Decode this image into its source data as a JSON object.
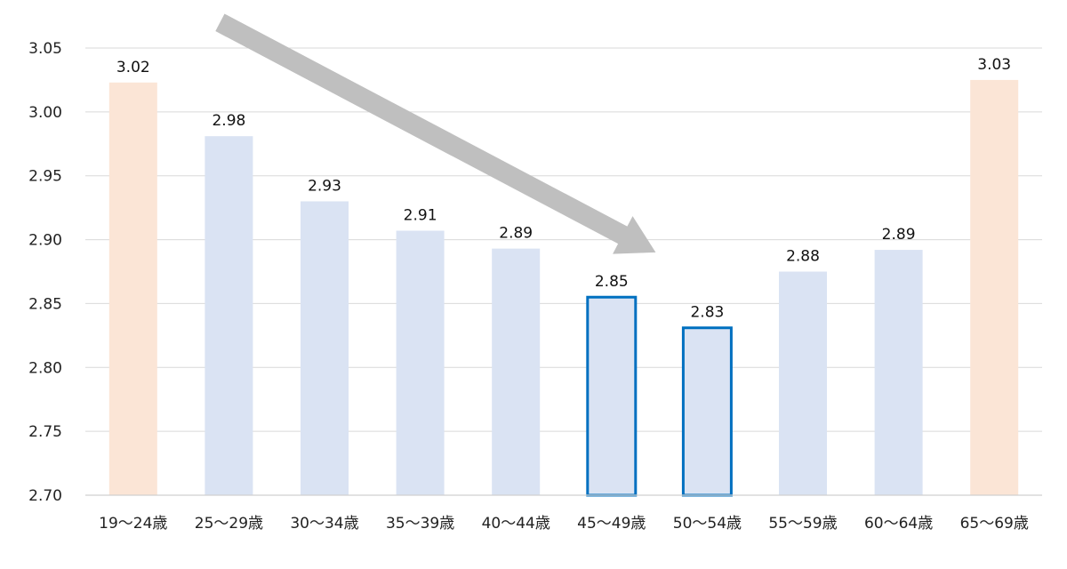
{
  "chart_data": {
    "type": "bar",
    "title": "",
    "xlabel": "",
    "ylabel": "",
    "categories": [
      "19〜24歳",
      "25〜29歳",
      "30〜34歳",
      "35〜39歳",
      "40〜44歳",
      "45〜49歳",
      "50〜54歳",
      "55〜59歳",
      "60〜64歳",
      "65〜69歳"
    ],
    "values": [
      3.023,
      2.981,
      2.93,
      2.907,
      2.893,
      2.855,
      2.831,
      2.875,
      2.892,
      3.025
    ],
    "data_labels": [
      "3.02",
      "2.98",
      "2.93",
      "2.91",
      "2.89",
      "2.85",
      "2.83",
      "2.88",
      "2.89",
      "3.03"
    ],
    "ylim": [
      2.7,
      3.05
    ],
    "y_ticks": [
      "2.70",
      "2.75",
      "2.80",
      "2.85",
      "2.90",
      "2.95",
      "3.00",
      "3.05"
    ],
    "grid": true,
    "legend": "none",
    "bar_styles": [
      "peach",
      "blue",
      "blue",
      "blue",
      "blue",
      "outlined",
      "outlined",
      "blue",
      "blue",
      "peach"
    ],
    "colors": {
      "blue": "#dae3f3",
      "peach": "#fbe5d6",
      "outline": "#0070c0",
      "arrow": "#bfbfbf"
    },
    "annotation": {
      "type": "arrow",
      "direction": "down-right",
      "from_category": "25〜29歳",
      "to_category": "50〜54歳",
      "from_value": 3.07,
      "to_value": 2.89
    }
  }
}
